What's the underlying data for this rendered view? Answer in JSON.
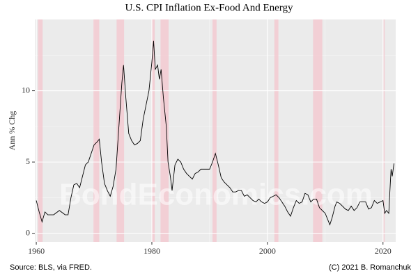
{
  "chart_data": {
    "type": "line",
    "title": "U.S. CPI Inflation Ex-Food And Energy",
    "y_label": "Ann % Chg",
    "source": "Source: BLS, via FRED.",
    "credit": "(C) 2021 B. Romanchuk",
    "watermark": "BondEconomics.com",
    "xlim": [
      1959.75,
      2022.2
    ],
    "ylim": [
      -0.6,
      15.0
    ],
    "xticks": [
      1960,
      1980,
      2000,
      2020
    ],
    "yticks": [
      0,
      5,
      10
    ],
    "x_minor_grid": [
      1970,
      1990,
      2010
    ],
    "y_minor_grid": [
      2.5,
      7.5,
      12.5
    ],
    "grid": true,
    "shaded_color": "#f4c8d0",
    "shaded_regions": [
      {
        "start": 1960.3,
        "end": 1961.1
      },
      {
        "start": 1969.9,
        "end": 1970.9
      },
      {
        "start": 1973.9,
        "end": 1975.2
      },
      {
        "start": 1980.0,
        "end": 1980.5
      },
      {
        "start": 1981.5,
        "end": 1982.9
      },
      {
        "start": 1990.5,
        "end": 1991.2
      },
      {
        "start": 2001.2,
        "end": 2001.9
      },
      {
        "start": 2007.9,
        "end": 2009.5
      },
      {
        "start": 2020.1,
        "end": 2020.3
      }
    ],
    "series": [
      {
        "color": "#000000",
        "x": [
          1960,
          1960.5,
          1961,
          1961.5,
          1962,
          1963,
          1964,
          1965,
          1965.5,
          1966,
          1966.5,
          1967,
          1967.5,
          1968,
          1968.5,
          1969,
          1969.5,
          1970,
          1970.5,
          1970.9,
          1971.3,
          1971.8,
          1972.3,
          1972.8,
          1973.3,
          1973.8,
          1974.3,
          1974.8,
          1975.1,
          1975.5,
          1976,
          1976.5,
          1977,
          1977.5,
          1978,
          1978.5,
          1979,
          1979.5,
          1980,
          1980.3,
          1980.6,
          1981,
          1981.3,
          1981.6,
          1982,
          1982.5,
          1982.8,
          1983.2,
          1983.5,
          1984,
          1984.5,
          1985,
          1985.5,
          1986,
          1986.5,
          1987,
          1987.5,
          1988,
          1988.5,
          1989,
          1989.5,
          1990,
          1990.5,
          1991,
          1991.5,
          1992,
          1992.5,
          1993,
          1993.5,
          1994,
          1994.5,
          1995,
          1995.5,
          1996,
          1996.5,
          1997,
          1997.5,
          1998,
          1998.5,
          1999,
          1999.5,
          2000,
          2000.5,
          2001,
          2001.5,
          2002,
          2002.5,
          2003,
          2003.5,
          2004,
          2004.5,
          2005,
          2005.5,
          2006,
          2006.5,
          2007,
          2007.5,
          2008,
          2008.5,
          2009,
          2009.5,
          2010,
          2010.5,
          2010.8,
          2011.2,
          2011.7,
          2012,
          2012.5,
          2013,
          2013.5,
          2014,
          2014.5,
          2015,
          2015.5,
          2016,
          2016.5,
          2017,
          2017.5,
          2018,
          2018.5,
          2019,
          2019.5,
          2020,
          2020.3,
          2020.6,
          2021,
          2021.2,
          2021.4,
          2021.6,
          2021.8,
          2021.9
        ],
        "values": [
          2.3,
          1.5,
          0.8,
          1.5,
          1.3,
          1.3,
          1.6,
          1.3,
          1.3,
          2.5,
          3.4,
          3.5,
          3.2,
          4.0,
          4.8,
          5.0,
          5.6,
          6.2,
          6.4,
          6.6,
          5.0,
          3.5,
          3.0,
          2.6,
          3.3,
          4.5,
          7.5,
          10.5,
          11.8,
          9.5,
          7.0,
          6.5,
          6.2,
          6.3,
          6.5,
          8.0,
          9.0,
          10.0,
          12.0,
          13.5,
          11.5,
          11.8,
          10.8,
          11.5,
          9.5,
          7.5,
          5.0,
          4.0,
          3.0,
          4.8,
          5.2,
          5.0,
          4.5,
          4.2,
          4.0,
          3.8,
          4.2,
          4.3,
          4.5,
          4.5,
          4.5,
          4.5,
          5.0,
          5.6,
          4.8,
          3.9,
          3.6,
          3.4,
          3.2,
          2.9,
          2.9,
          3.0,
          3.0,
          2.6,
          2.7,
          2.5,
          2.3,
          2.2,
          2.4,
          2.2,
          2.1,
          2.2,
          2.5,
          2.6,
          2.7,
          2.5,
          2.2,
          1.9,
          1.5,
          1.2,
          1.8,
          2.3,
          2.1,
          2.2,
          2.8,
          2.7,
          2.2,
          2.4,
          2.4,
          1.8,
          1.6,
          1.4,
          0.9,
          0.6,
          1.1,
          1.9,
          2.2,
          2.1,
          1.9,
          1.7,
          1.6,
          1.9,
          1.6,
          1.8,
          2.2,
          2.2,
          2.2,
          1.7,
          1.8,
          2.3,
          2.1,
          2.2,
          2.3,
          1.4,
          1.6,
          1.4,
          3.0,
          4.5,
          4.0,
          4.6,
          4.9
        ]
      }
    ]
  }
}
